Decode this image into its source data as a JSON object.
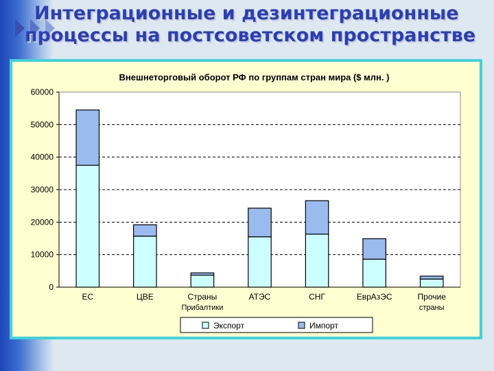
{
  "slide": {
    "title_line1": "Интеграционные и дезинтеграционные",
    "title_line2": "процессы на постсоветском пространстве"
  },
  "colors": {
    "title": "#2a3fb4",
    "export": "#ccffff",
    "import": "#99bbee",
    "frame": "#3fd2d8",
    "chart_bg": "#fffed0"
  },
  "chart_data": {
    "type": "bar",
    "stacked": true,
    "title": "Внешнеторговый оборот РФ по группам стран мира ($ млн. )",
    "categories": [
      [
        "ЕС"
      ],
      [
        "ЦВЕ"
      ],
      [
        "Страны",
        "Прибалтики"
      ],
      [
        "АТЭС"
      ],
      [
        "СНГ"
      ],
      [
        "ЕврАзЭС"
      ],
      [
        "Прочие",
        "страны"
      ]
    ],
    "series": [
      {
        "name": "Экспорт",
        "color": "#ccffff",
        "values": [
          37500,
          15700,
          3700,
          15500,
          16300,
          8600,
          2500
        ]
      },
      {
        "name": "Импорт",
        "color": "#99bbee",
        "values": [
          17000,
          3500,
          700,
          8800,
          10300,
          6300,
          900
        ]
      }
    ],
    "ylim": [
      0,
      60000
    ],
    "yticks": [
      0,
      10000,
      20000,
      30000,
      40000,
      50000,
      60000
    ],
    "grid": "dashed-horizontal",
    "legend": "bottom"
  }
}
